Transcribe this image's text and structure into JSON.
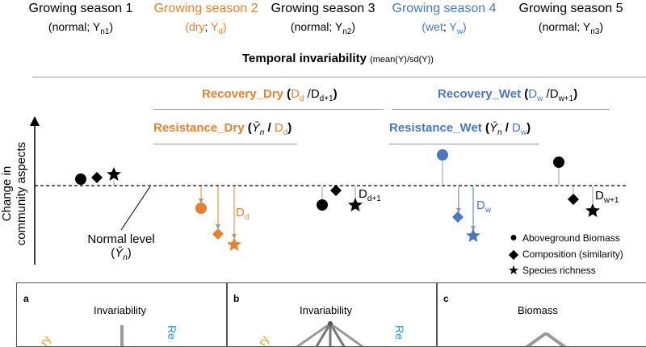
{
  "seasons": [
    {
      "title": "Growing season 1",
      "open": "(",
      "cond": "normal",
      "sep": "; ",
      "var": "Y",
      "sub": "n1",
      "close": ")",
      "color": "#000000"
    },
    {
      "title": "Growing season 2",
      "open": "(",
      "cond": "dry",
      "sep": "; ",
      "var": "Y",
      "sub": "d",
      "close": ")",
      "color": "#E8812E"
    },
    {
      "title": "Growing season 3",
      "open": "(",
      "cond": "normal",
      "sep": "; ",
      "var": "Y",
      "sub": "n2",
      "close": ")",
      "color": "#000000"
    },
    {
      "title": "Growing season 4",
      "open": "(",
      "cond": "wet",
      "sep": "; ",
      "var": "Y",
      "sub": "w",
      "close": ")",
      "color": "#4A78C0"
    },
    {
      "title": "Growing season 5",
      "open": "(",
      "cond": "normal",
      "sep": "; ",
      "var": "Y",
      "sub": "n3",
      "close": ")",
      "color": "#000000"
    }
  ],
  "temporal_invariability": {
    "label": "Temporal invariability",
    "formula": "(mean(Y)/sd(Y))"
  },
  "recovery_dry": {
    "label": "Recovery_Dry",
    "open": " (",
    "d1": "D",
    "d1sub": "d",
    "slash": " /",
    "d2": "D",
    "d2sub": "d+1",
    "close": ")"
  },
  "recovery_wet": {
    "label": "Recovery_Wet",
    "open": " (",
    "d1": "D",
    "d1sub": "w",
    "slash": " /",
    "d2": "D",
    "d2sub": "w+1",
    "close": ")"
  },
  "resistance_dry": {
    "label": "Resistance_Dry",
    "open": " (",
    "ybar": "Ȳ",
    "ysub": "n",
    "slash": " / ",
    "d": "D",
    "dsub": "d",
    "close": ")"
  },
  "resistance_wet": {
    "label": "Resistance_Wet",
    "open": " (",
    "ybar": "Ȳ",
    "ysub": "n",
    "slash": " / ",
    "d": "D",
    "dsub": "w",
    "close": ")"
  },
  "y_axis_label": {
    "line1": "Change in",
    "line2": "community aspects"
  },
  "normal_level": {
    "label": "Normal level",
    "ybar": "Ȳ",
    "sub": "n"
  },
  "deviation_labels": {
    "dd": {
      "main": "D",
      "sub": "d"
    },
    "dd1": {
      "main": "D",
      "sub": "d+1"
    },
    "dw": {
      "main": "D",
      "sub": "w"
    },
    "dw1": {
      "main": "D",
      "sub": "w+1"
    }
  },
  "legend": [
    {
      "icon": "circle-icon",
      "label": "Aboveground Biomass"
    },
    {
      "icon": "diamond-icon",
      "label": "Composition (similarity)"
    },
    {
      "icon": "star-icon",
      "label": "Species richness"
    }
  ],
  "panels": [
    {
      "letter": "a",
      "title": "Invariability",
      "left_word": "ry",
      "right_word": "Re"
    },
    {
      "letter": "b",
      "title": "Invariability",
      "left_word": "ry",
      "right_word": "Re"
    },
    {
      "letter": "c",
      "title": "Biomass"
    }
  ],
  "colors": {
    "orange": "#E8812E",
    "blue": "#4A78C0",
    "gray": "#9a9a9a",
    "black": "#000000",
    "yellow": "#D8A820",
    "teal": "#2A9BCB"
  }
}
